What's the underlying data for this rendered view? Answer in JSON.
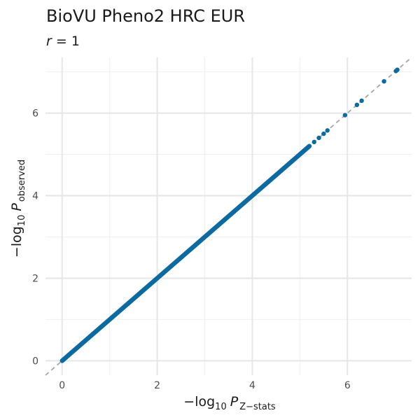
{
  "chart_data": {
    "type": "scatter",
    "title": "BioVU Pheno2 HRC EUR",
    "subtitle": {
      "var": "r",
      "op": " = ",
      "value": "1"
    },
    "xlabel": {
      "prefix": "−",
      "fn": "log",
      "base": "10",
      "var": "P",
      "sub": "Z−stats"
    },
    "ylabel": {
      "prefix": "−",
      "fn": "log",
      "base": "10",
      "var": "P",
      "sub": "observed"
    },
    "xlim": [
      -0.35,
      7.35
    ],
    "ylim": [
      -0.35,
      7.35
    ],
    "xticks": [
      0,
      2,
      4,
      6
    ],
    "yticks": [
      0,
      2,
      4,
      6
    ],
    "grid": true,
    "reference_line": {
      "type": "identity",
      "style": "dashed",
      "color": "#a6a6a6"
    },
    "point_color": "#0b6a9f",
    "dense_range": [
      0,
      5.2
    ],
    "points": [
      {
        "x": 5.3,
        "y": 5.3
      },
      {
        "x": 5.4,
        "y": 5.4
      },
      {
        "x": 5.5,
        "y": 5.5
      },
      {
        "x": 5.58,
        "y": 5.58
      },
      {
        "x": 5.95,
        "y": 5.95
      },
      {
        "x": 6.2,
        "y": 6.2
      },
      {
        "x": 6.3,
        "y": 6.3
      },
      {
        "x": 6.77,
        "y": 6.77
      },
      {
        "x": 7.02,
        "y": 7.02
      },
      {
        "x": 7.05,
        "y": 7.05
      }
    ]
  }
}
